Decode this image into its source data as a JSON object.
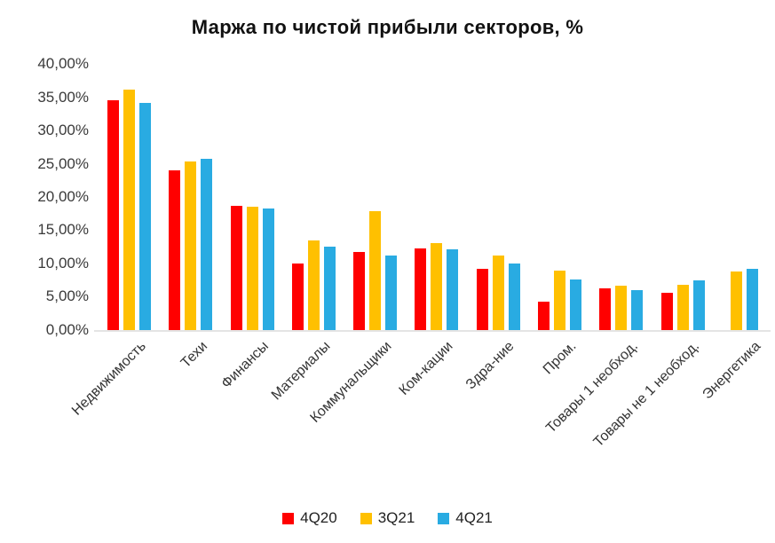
{
  "title": "Маржа по чистой прибыли секторов, %",
  "chart_data": {
    "type": "bar",
    "title": "Маржа по чистой прибыли секторов, %",
    "categories": [
      "Недвижимость",
      "Техи",
      "Финансы",
      "Материалы",
      "Коммунальщики",
      "Ком-кации",
      "Здра-ние",
      "Пром.",
      "Товары 1 необход.",
      "Товары не 1 необход.",
      "Энергетика"
    ],
    "series": [
      {
        "name": "4Q20",
        "color": "#FF0000",
        "values": [
          34.7,
          24.2,
          18.9,
          10.2,
          11.9,
          12.4,
          9.3,
          4.4,
          6.4,
          5.7,
          null
        ]
      },
      {
        "name": "3Q21",
        "color": "#FFC000",
        "values": [
          36.4,
          25.6,
          18.7,
          13.6,
          18.0,
          13.2,
          11.3,
          9.1,
          6.8,
          7.0,
          8.9
        ]
      },
      {
        "name": "4Q21",
        "color": "#29ABE2",
        "values": [
          34.3,
          26.0,
          18.4,
          12.7,
          11.4,
          12.3,
          10.2,
          7.7,
          6.2,
          7.6,
          9.4
        ]
      }
    ],
    "xlabel": "",
    "ylabel": "",
    "ylim": [
      0,
      40
    ],
    "ytick_step": 5,
    "ytick_labels": [
      "0,00%",
      "5,00%",
      "10,00%",
      "15,00%",
      "20,00%",
      "25,00%",
      "30,00%",
      "35,00%",
      "40,00%"
    ],
    "grid": false,
    "legend_position": "bottom",
    "background_color": "#FFFFFF",
    "axis_line_color": "#E4E4E4",
    "tick_text_color": "#3A3A3A"
  }
}
